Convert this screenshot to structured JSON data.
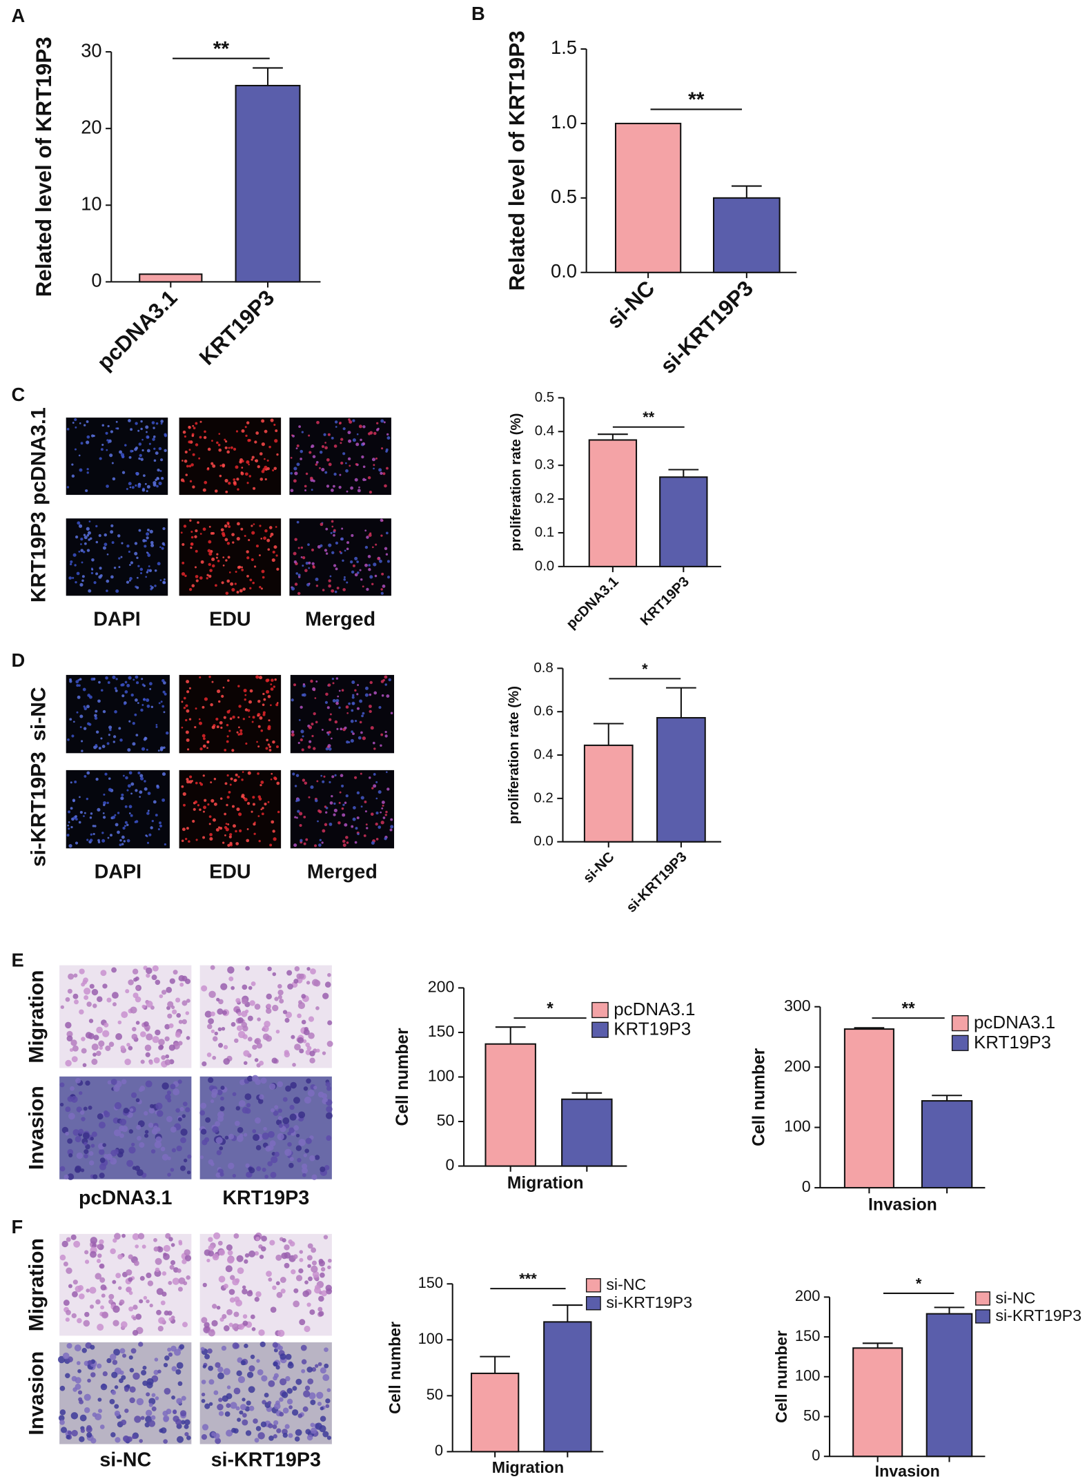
{
  "panel_letters": [
    "A",
    "B",
    "C",
    "D",
    "E",
    "F"
  ],
  "image_panels": [
    {
      "rows": [
        "pcDNA3.1",
        "KRT19P3"
      ],
      "columns": [
        "DAPI",
        "EDU",
        "Merged"
      ]
    },
    {
      "rows": [
        "si-NC",
        "si-KRT19P3"
      ],
      "columns": [
        "DAPI",
        "EDU",
        "Merged"
      ]
    },
    {
      "rows": [
        "Migration",
        "Invasion"
      ],
      "columns": [
        "pcDNA3.1",
        "KRT19P3"
      ]
    },
    {
      "rows": [
        "Migration",
        "Invasion"
      ],
      "columns": [
        "si-NC",
        "si-KRT19P3"
      ]
    }
  ],
  "chart_data": [
    {
      "type": "bar",
      "y_label": "Related level of KRT19P3",
      "categories": [
        "pcDNA3.1",
        "KRT19P3"
      ],
      "values": [
        1,
        25.6
      ],
      "errors": [
        0,
        2.3
      ],
      "colors": [
        "#f4a3a6",
        "#5a5eab"
      ],
      "ylim": [
        0,
        30
      ],
      "yticks": [
        0,
        10,
        20,
        30
      ],
      "annotation": "**",
      "legend": false
    },
    {
      "type": "bar",
      "y_label": "Related level of KRT19P3",
      "categories": [
        "si-NC",
        "si-KRT19P3"
      ],
      "values": [
        1.0,
        0.5
      ],
      "errors": [
        0,
        0.08
      ],
      "colors": [
        "#f4a3a6",
        "#5a5eab"
      ],
      "ylim": [
        0,
        1.5
      ],
      "yticks": [
        {
          "value": 0,
          "label": "0.0"
        },
        0.5,
        {
          "value": 1,
          "label": "1.0"
        },
        1.5
      ],
      "annotation": "**",
      "legend": false
    },
    {
      "type": "bar",
      "y_label": "proliferation rate (%)",
      "categories": [
        "pcDNA3.1",
        "KRT19P3"
      ],
      "values": [
        0.375,
        0.265
      ],
      "errors": [
        0.017,
        0.022
      ],
      "colors": [
        "#f4a3a6",
        "#5a5eab"
      ],
      "ylim": [
        0,
        0.5
      ],
      "yticks": [
        {
          "value": 0,
          "label": "0.0"
        },
        0.1,
        0.2,
        0.3,
        0.4,
        0.5
      ],
      "annotation": "**",
      "legend": false
    },
    {
      "type": "bar",
      "y_label": "proliferation rate (%)",
      "categories": [
        "si-NC",
        "si-KRT19P3"
      ],
      "values": [
        0.445,
        0.572
      ],
      "errors": [
        0.1,
        0.138
      ],
      "colors": [
        "#f4a3a6",
        "#5a5eab"
      ],
      "ylim": [
        0,
        0.8
      ],
      "yticks": [
        {
          "value": 0,
          "label": "0.0"
        },
        0.2,
        0.4,
        0.6,
        0.8
      ],
      "annotation": "*",
      "legend": false
    },
    {
      "type": "bar",
      "y_label": "Cell number",
      "x_label": "Migration",
      "categories": [
        "pcDNA3.1",
        "KRT19P3"
      ],
      "values": [
        137,
        75
      ],
      "errors": [
        19,
        7
      ],
      "colors": [
        "#f4a3a6",
        "#5a5eab"
      ],
      "ylim": [
        0,
        200
      ],
      "yticks": [
        0,
        50,
        100,
        150,
        200
      ],
      "annotation": "*",
      "legend": true
    },
    {
      "type": "bar",
      "y_label": "Cell number",
      "x_label": "Invasion",
      "categories": [
        "pcDNA3.1",
        "KRT19P3"
      ],
      "values": [
        263,
        144
      ],
      "errors": [
        2,
        9
      ],
      "colors": [
        "#f4a3a6",
        "#5a5eab"
      ],
      "ylim": [
        0,
        300
      ],
      "yticks": [
        0,
        100,
        200,
        300
      ],
      "annotation": "**",
      "legend": true
    },
    {
      "type": "bar",
      "y_label": "Cell number",
      "x_label": "Migration",
      "categories": [
        "si-NC",
        "si-KRT19P3"
      ],
      "values": [
        70,
        116
      ],
      "errors": [
        15,
        15
      ],
      "colors": [
        "#f4a3a6",
        "#5a5eab"
      ],
      "ylim": [
        0,
        150
      ],
      "yticks": [
        0,
        50,
        100,
        150
      ],
      "annotation": "***",
      "legend": true
    },
    {
      "type": "bar",
      "y_label": "Cell number",
      "x_label": "Invasion",
      "categories": [
        "si-NC",
        "si-KRT19P3"
      ],
      "values": [
        136,
        179
      ],
      "errors": [
        6,
        8
      ],
      "colors": [
        "#f4a3a6",
        "#5a5eab"
      ],
      "ylim": [
        0,
        200
      ],
      "yticks": [
        0,
        50,
        100,
        150,
        200
      ],
      "annotation": "*",
      "legend": true
    }
  ]
}
